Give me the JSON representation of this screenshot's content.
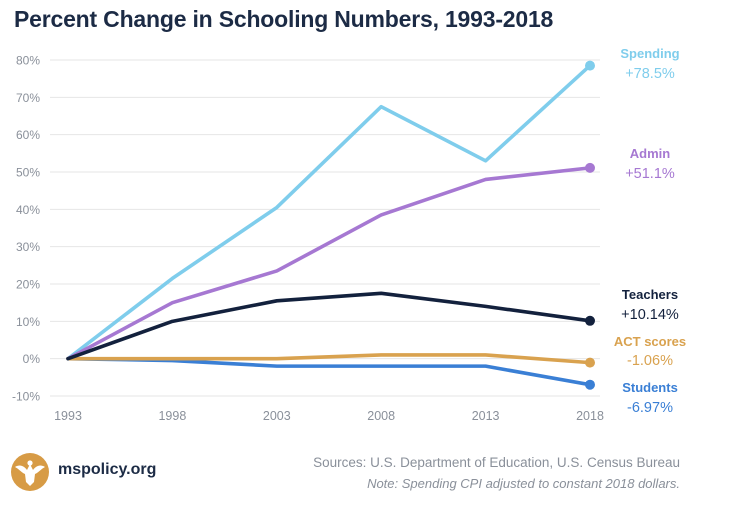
{
  "colors": {
    "title": "#1c2b45",
    "grid": "#e6e6e6",
    "axis_text": "#8a909a",
    "logo": "#d79b45"
  },
  "footer": {
    "site": "mspolicy.org",
    "source": "Sources: U.S. Department of Education, U.S. Census Bureau",
    "note": "Note: Spending CPI adjusted to constant 2018 dollars."
  },
  "chart_data": {
    "type": "line",
    "title": "Percent Change in Schooling Numbers, 1993-2018",
    "x": [
      1993,
      1998,
      2003,
      2008,
      2013,
      2018
    ],
    "xticks": [
      "1993",
      "1998",
      "2003",
      "2008",
      "2013",
      "2018"
    ],
    "ylim": [
      -10,
      80
    ],
    "yticks": [
      -10,
      0,
      10,
      20,
      30,
      40,
      50,
      60,
      70,
      80
    ],
    "ytick_labels": [
      "-10%",
      "0%",
      "10%",
      "20%",
      "30%",
      "40%",
      "50%",
      "60%",
      "70%",
      "80%"
    ],
    "grid": true,
    "series": [
      {
        "name": "Spending",
        "label_value": "+78.5%",
        "color": "#7fcdec",
        "values": [
          0,
          21.5,
          40.5,
          67.5,
          53,
          78.5
        ]
      },
      {
        "name": "Admin",
        "label_value": "+51.1%",
        "color": "#a678d2",
        "values": [
          0,
          15,
          23.5,
          38.5,
          48,
          51.1
        ]
      },
      {
        "name": "Teachers",
        "label_value": "+10.14%",
        "color": "#13213d",
        "values": [
          0,
          10,
          15.5,
          17.5,
          14,
          10.14
        ]
      },
      {
        "name": "ACT scores",
        "label_value": "-1.06%",
        "color": "#d9a24f",
        "values": [
          0,
          0,
          0,
          1,
          1,
          -1.06
        ]
      },
      {
        "name": "Students",
        "label_value": "-6.97%",
        "color": "#3a7fd5",
        "values": [
          0,
          -0.5,
          -2,
          -2,
          -2,
          -6.97
        ]
      }
    ]
  }
}
